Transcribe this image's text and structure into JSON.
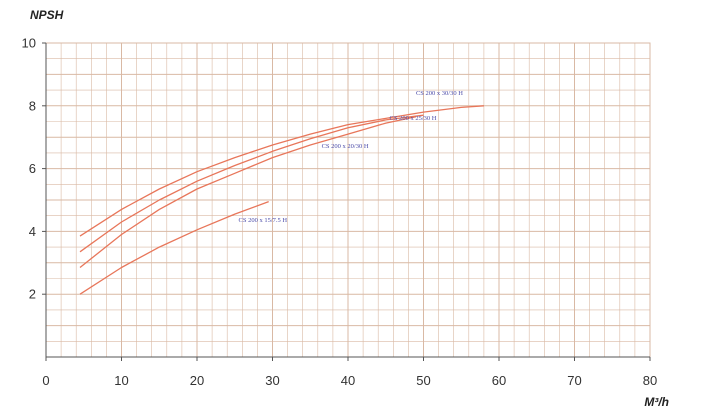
{
  "chart_data": {
    "type": "line",
    "title": "",
    "ylabel": "NPSH",
    "xlabel": "M³/h",
    "xlim": [
      0,
      80
    ],
    "ylim": [
      0,
      10
    ],
    "xticks": [
      "0",
      "10",
      "20",
      "30",
      "40",
      "50",
      "60",
      "70",
      "80"
    ],
    "yticks": [
      "2",
      "4",
      "6",
      "8",
      "10"
    ],
    "grid": true,
    "series": [
      {
        "name": "CS 200 x 30/30 H",
        "x": [
          4.5,
          10,
          15,
          20,
          25,
          30,
          35,
          40,
          45,
          50,
          55,
          58
        ],
        "y": [
          3.85,
          4.7,
          5.35,
          5.9,
          6.35,
          6.75,
          7.1,
          7.4,
          7.6,
          7.8,
          7.95,
          8.0
        ]
      },
      {
        "name": "CS 200 x 25/30 H",
        "x": [
          4.5,
          10,
          15,
          20,
          25,
          30,
          35,
          40,
          45,
          50
        ],
        "y": [
          3.35,
          4.3,
          5.0,
          5.6,
          6.1,
          6.55,
          6.95,
          7.3,
          7.55,
          7.7
        ]
      },
      {
        "name": "CS 200 x 20/30 H",
        "x": [
          4.5,
          10,
          15,
          20,
          25,
          30,
          35,
          40,
          45,
          49
        ],
        "y": [
          2.85,
          3.9,
          4.7,
          5.35,
          5.85,
          6.35,
          6.75,
          7.1,
          7.45,
          7.65
        ]
      },
      {
        "name": "CS 200 x 15/7.5 H",
        "x": [
          4.5,
          10,
          15,
          20,
          25,
          29.5
        ],
        "y": [
          2.0,
          2.85,
          3.5,
          4.05,
          4.55,
          4.95
        ]
      }
    ],
    "label_anchors": [
      {
        "x": 49,
        "y": 8.35
      },
      {
        "x": 45.5,
        "y": 7.55
      },
      {
        "x": 36.5,
        "y": 6.65
      },
      {
        "x": 25.5,
        "y": 4.3
      }
    ],
    "line_color": "#e8765a",
    "label_color": "#4a4aa8",
    "grid_color": "#d9b9a4"
  }
}
